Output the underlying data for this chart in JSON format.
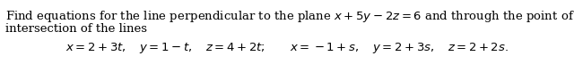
{
  "line1_text": "Find equations for the line perpendicular to the plane ",
  "line1_math": "x + 5y - 2z = 6",
  "line1_end": " and through the point of",
  "line2": "intersection of the lines",
  "line3": "$x = 2 + 3t, \\quad y = 1-t, \\quad z = 4 + 2t; \\qquad x = -1+s, \\quad y = 2+3s, \\quad z = 2+2s.$",
  "text_color": "#000000",
  "background_color": "#ffffff",
  "fontsize": 9.5
}
